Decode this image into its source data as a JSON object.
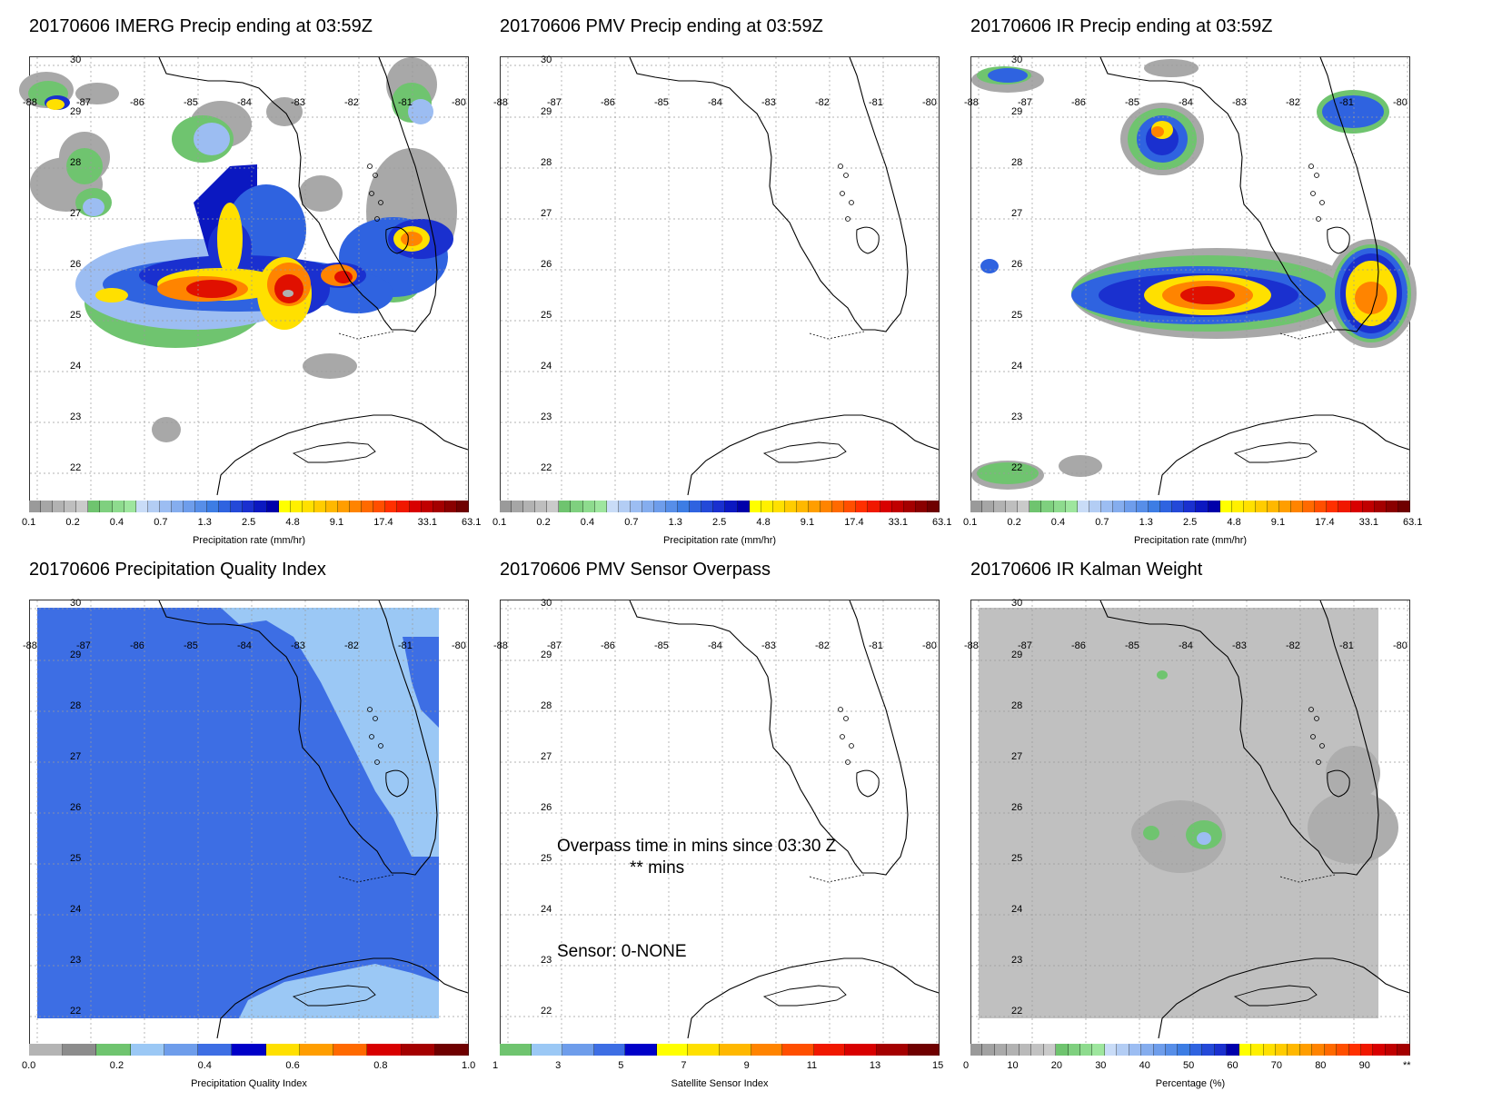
{
  "panels": [
    {
      "title": "20170606 IMERG Precip ending at 03:59Z",
      "kind": "imerg",
      "colorbar": {
        "title": "Precipitation rate (mm/hr)",
        "labels": [
          "0.1",
          "0.2",
          "0.4",
          "0.7",
          "1.3",
          "2.5",
          "4.8",
          "9.1",
          "17.4",
          "33.1",
          "63.1"
        ],
        "colors": [
          "#9a9a9a",
          "#a6a6a6",
          "#b2b2b2",
          "#bebebe",
          "#cacaca",
          "#6fc46f",
          "#7fd07f",
          "#8edb8e",
          "#9ee69e",
          "#c9dcf7",
          "#b3cdf4",
          "#9cbdf2",
          "#85adee",
          "#6e9deb",
          "#578ee8",
          "#3d7de4",
          "#2f63e0",
          "#2449d8",
          "#1a30cf",
          "#0b18c1",
          "#0000aa",
          "#ffff00",
          "#fff000",
          "#ffe000",
          "#ffcc00",
          "#ffb800",
          "#ff9e00",
          "#ff8400",
          "#ff6a00",
          "#ff4f00",
          "#ff3000",
          "#f01800",
          "#d80000",
          "#c00000",
          "#a40000",
          "#8a0000",
          "#6f0000"
        ]
      }
    },
    {
      "title": "20170606 PMV Precip ending at 03:59Z",
      "kind": "empty",
      "colorbar": {
        "title": "Precipitation rate (mm/hr)",
        "labels": [
          "0.1",
          "0.2",
          "0.4",
          "0.7",
          "1.3",
          "2.5",
          "4.8",
          "9.1",
          "17.4",
          "33.1",
          "63.1"
        ],
        "colors": [
          "#9a9a9a",
          "#a6a6a6",
          "#b2b2b2",
          "#bebebe",
          "#cacaca",
          "#6fc46f",
          "#7fd07f",
          "#8edb8e",
          "#9ee69e",
          "#c9dcf7",
          "#b3cdf4",
          "#9cbdf2",
          "#85adee",
          "#6e9deb",
          "#578ee8",
          "#3d7de4",
          "#2f63e0",
          "#2449d8",
          "#1a30cf",
          "#0b18c1",
          "#0000aa",
          "#ffff00",
          "#fff000",
          "#ffe000",
          "#ffcc00",
          "#ffb800",
          "#ff9e00",
          "#ff8400",
          "#ff6a00",
          "#ff4f00",
          "#ff3000",
          "#f01800",
          "#d80000",
          "#c00000",
          "#a40000",
          "#8a0000",
          "#6f0000"
        ]
      }
    },
    {
      "title": "20170606 IR Precip ending at 03:59Z",
      "kind": "ir",
      "colorbar": {
        "title": "Precipitation rate (mm/hr)",
        "labels": [
          "0.1",
          "0.2",
          "0.4",
          "0.7",
          "1.3",
          "2.5",
          "4.8",
          "9.1",
          "17.4",
          "33.1",
          "63.1"
        ],
        "colors": [
          "#9a9a9a",
          "#a6a6a6",
          "#b2b2b2",
          "#bebebe",
          "#cacaca",
          "#6fc46f",
          "#7fd07f",
          "#8edb8e",
          "#9ee69e",
          "#c9dcf7",
          "#b3cdf4",
          "#9cbdf2",
          "#85adee",
          "#6e9deb",
          "#578ee8",
          "#3d7de4",
          "#2f63e0",
          "#2449d8",
          "#1a30cf",
          "#0b18c1",
          "#0000aa",
          "#ffff00",
          "#fff000",
          "#ffe000",
          "#ffcc00",
          "#ffb800",
          "#ff9e00",
          "#ff8400",
          "#ff6a00",
          "#ff4f00",
          "#ff3000",
          "#f01800",
          "#d80000",
          "#c00000",
          "#a40000",
          "#8a0000",
          "#6f0000"
        ]
      }
    },
    {
      "title": "20170606 Precipitation Quality Index",
      "kind": "qi",
      "colorbar": {
        "title": "Precipitation Quality Index",
        "labels": [
          "0.0",
          "0.2",
          "0.4",
          "0.6",
          "0.8",
          "1.0"
        ],
        "colors": [
          "#b4b4b4",
          "#8c8c8c",
          "#6fc46f",
          "#9bc8f5",
          "#6e9deb",
          "#3d6ee4",
          "#0000c8",
          "#ffe000",
          "#ff9e00",
          "#ff6a00",
          "#d80000",
          "#a40000",
          "#6f0000"
        ]
      }
    },
    {
      "title": "20170606 PMV Sensor Overpass",
      "kind": "overpass",
      "overlay": {
        "line1": "Overpass time in mins since 03:30 Z",
        "line2": "** mins",
        "sensor": "Sensor:   0-NONE"
      },
      "colorbar": {
        "title": "Satellite Sensor Index",
        "labels": [
          "1",
          "3",
          "5",
          "7",
          "9",
          "11",
          "13",
          "15"
        ],
        "colors": [
          "#6fc46f",
          "#9bc8f5",
          "#6e9deb",
          "#3d6ee4",
          "#0000c8",
          "#ffff00",
          "#ffe000",
          "#ffb800",
          "#ff8400",
          "#ff4f00",
          "#f01800",
          "#d80000",
          "#a40000",
          "#6f0000"
        ]
      }
    },
    {
      "title": "20170606 IR Kalman Weight",
      "kind": "kalman",
      "colorbar": {
        "title": "Percentage (%)",
        "labels": [
          "0",
          "10",
          "20",
          "30",
          "40",
          "50",
          "60",
          "70",
          "80",
          "90",
          "**"
        ],
        "colors": [
          "#9a9a9a",
          "#a2a2a2",
          "#aaaaaa",
          "#b2b2b2",
          "#bababa",
          "#c2c2c2",
          "#cacaca",
          "#6fc46f",
          "#7fd07f",
          "#8edb8e",
          "#9ee69e",
          "#c9dcf7",
          "#b3cdf4",
          "#9cbdf2",
          "#85adee",
          "#6e9deb",
          "#578ee8",
          "#3d7de4",
          "#2f63e0",
          "#2449d8",
          "#1a30cf",
          "#0000aa",
          "#ffff00",
          "#fff000",
          "#ffe000",
          "#ffcc00",
          "#ffb800",
          "#ff9e00",
          "#ff8400",
          "#ff6a00",
          "#ff4f00",
          "#ff3000",
          "#f01800",
          "#d80000",
          "#c00000",
          "#a40000"
        ]
      }
    }
  ],
  "axes": {
    "lon_labels": [
      "-88",
      "-87",
      "-86",
      "-85",
      "-84",
      "-83",
      "-82",
      "-81",
      "-80"
    ],
    "lat_labels": [
      "30",
      "29",
      "28",
      "27",
      "26",
      "25",
      "24",
      "23",
      "22"
    ]
  },
  "style_colors": {
    "land_outline": "#000000",
    "grid": "#9a9a9a"
  }
}
